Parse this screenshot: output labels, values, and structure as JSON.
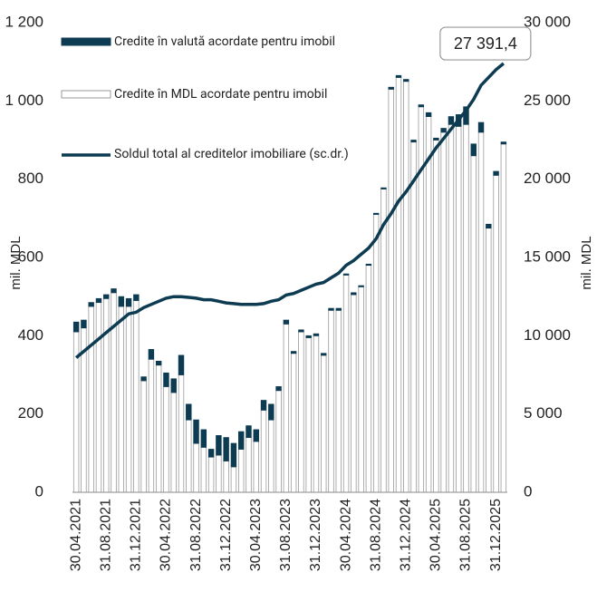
{
  "chart_data": {
    "type": "bar-line",
    "categories": [
      "30.04.2021",
      null,
      null,
      null,
      "31.08.2021",
      null,
      null,
      null,
      "31.12.2021",
      null,
      null,
      null,
      "30.04.2022",
      null,
      null,
      null,
      "31.08.2022",
      null,
      null,
      null,
      "31.12.2022",
      null,
      null,
      null,
      "30.04.2023",
      null,
      null,
      null,
      "31.08.2023",
      null,
      null,
      null,
      "31.12.2023",
      null,
      null,
      null,
      "30.04.2024",
      null,
      null,
      null,
      "31.08.2024",
      null,
      null,
      null,
      "31.12.2024",
      null,
      null,
      null,
      "30.04.2025",
      null,
      null,
      null,
      "31.08.2025",
      null,
      null,
      null,
      "31.12.2025",
      null
    ],
    "series": [
      {
        "name": "Credite în valută acordate pentru imobil",
        "color": "#0d3b52",
        "values": [
          25,
          20,
          10,
          10,
          10,
          10,
          25,
          20,
          15,
          10,
          25,
          10,
          35,
          35,
          50,
          40,
          60,
          45,
          20,
          50,
          60,
          60,
          45,
          30,
          30,
          25,
          40,
          10,
          10,
          5,
          5,
          5,
          5,
          5,
          5,
          5,
          3,
          5,
          3,
          3,
          3,
          3,
          5,
          5,
          5,
          5,
          5,
          10,
          5,
          10,
          20,
          30,
          45,
          30,
          25,
          10,
          10,
          5
        ]
      },
      {
        "name": "Credite în MDL acordate pentru imobil",
        "color": "#ffffff",
        "values": [
          410,
          420,
          475,
          485,
          495,
          510,
          475,
          475,
          490,
          285,
          340,
          325,
          270,
          255,
          300,
          185,
          125,
          115,
          90,
          95,
          80,
          65,
          110,
          140,
          130,
          210,
          185,
          260,
          430,
          355,
          410,
          395,
          400,
          350,
          465,
          465,
          555,
          505,
          525,
          580,
          710,
          775,
          1030,
          1060,
          1050,
          895,
          985,
          960,
          900,
          920,
          940,
          935,
          940,
          860,
          920,
          675,
          810,
          890
        ]
      },
      {
        "name": "Soldul total al creditelor imobiliare (sc.dr.)",
        "color": "#0d3b52",
        "axis": "y2",
        "values": [
          8600,
          9000,
          9400,
          9800,
          10200,
          10600,
          11000,
          11400,
          11500,
          11800,
          12000,
          12200,
          12400,
          12500,
          12500,
          12450,
          12400,
          12300,
          12300,
          12200,
          12100,
          12050,
          12000,
          12000,
          12000,
          12050,
          12200,
          12300,
          12600,
          12700,
          12900,
          13100,
          13300,
          13400,
          13700,
          14000,
          14500,
          14800,
          15200,
          15600,
          16200,
          17100,
          17800,
          18600,
          19200,
          19900,
          20600,
          21300,
          22000,
          22600,
          23200,
          23800,
          24400,
          25100,
          26000,
          26500,
          27000,
          27391.4
        ],
        "value_labels": [
          null,
          null,
          null,
          null,
          null,
          null,
          null,
          null,
          null,
          null,
          null,
          null,
          null,
          null,
          null,
          null,
          null,
          null,
          null,
          null,
          null,
          null,
          null,
          null,
          null,
          null,
          null,
          null,
          null,
          null,
          null,
          null,
          null,
          null,
          null,
          null,
          null,
          null,
          null,
          null,
          null,
          null,
          null,
          null,
          null,
          null,
          null,
          null,
          null,
          null,
          null,
          null,
          null,
          null,
          null,
          null,
          null,
          "27 391,4"
        ]
      }
    ],
    "ylabel": "mil. MDL",
    "y2label": "mil. MDL",
    "ylim": [
      0,
      1200
    ],
    "yticks": [
      0,
      200,
      400,
      600,
      800,
      {
        "value": 1000,
        "label": "1 000"
      },
      {
        "value": 1200,
        "label": "1 200"
      }
    ],
    "y2lim": [
      0,
      30000
    ],
    "y2ticks": [
      0,
      {
        "value": 5000,
        "label": "5 000"
      },
      {
        "value": 10000,
        "label": "10 000"
      },
      {
        "value": 15000,
        "label": "15 000"
      },
      {
        "value": 20000,
        "label": "20 000"
      },
      {
        "value": 25000,
        "label": "25 000"
      },
      {
        "value": 30000,
        "label": "30 000"
      }
    ],
    "grid": false,
    "legend": "top-left"
  }
}
